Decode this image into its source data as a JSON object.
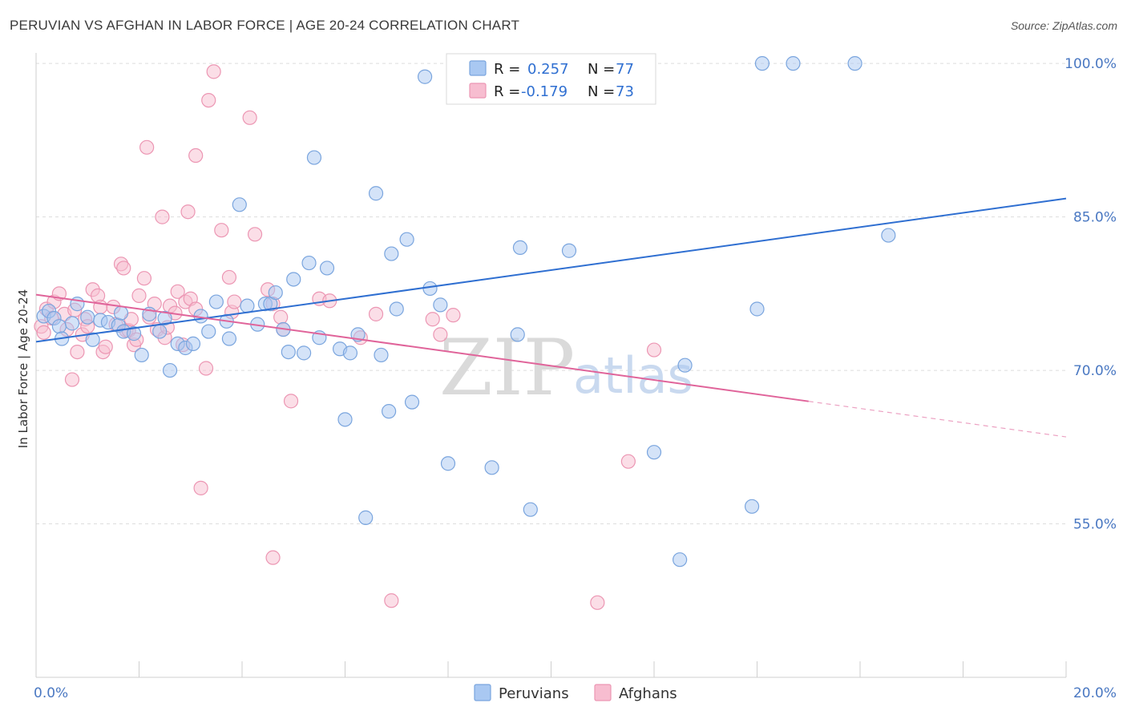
{
  "title": "PERUVIAN VS AFGHAN IN LABOR FORCE | AGE 20-24 CORRELATION CHART",
  "source": "Source: ZipAtlas.com",
  "watermark": {
    "zip": "ZIP",
    "atlas": "atlas"
  },
  "colors": {
    "peruvian_fill": "#a9c8f2",
    "peruvian_stroke": "#7aa5de",
    "peruvian_line": "#2f6fd1",
    "afghan_fill": "#f7bdd0",
    "afghan_stroke": "#ec96b3",
    "afghan_line": "#e0649a",
    "grid": "#dddddd",
    "axis_label": "#4a78c2"
  },
  "legend": {
    "rows": [
      {
        "r_label": "R =",
        "r_value": "0.257",
        "n_label": "N =",
        "n_value": "77"
      },
      {
        "r_label": "R =",
        "r_value": "-0.179",
        "n_label": "N =",
        "n_value": "73"
      }
    ]
  },
  "chart_data": {
    "type": "scatter",
    "title": "PERUVIAN VS AFGHAN IN LABOR FORCE | AGE 20-24 CORRELATION CHART",
    "xlabel": "",
    "ylabel": "In Labor Force | Age 20-24",
    "xlim": [
      0,
      20
    ],
    "ylim": [
      40,
      101.5
    ],
    "x_tick_labels": [
      {
        "value": 0,
        "label": "0.0%"
      },
      {
        "value": 20,
        "label": "20.0%"
      }
    ],
    "y_tick_labels": [
      {
        "value": 100,
        "label": "100.0%"
      },
      {
        "value": 85,
        "label": "85.0%"
      },
      {
        "value": 70,
        "label": "70.0%"
      },
      {
        "value": 55,
        "label": "55.0%"
      }
    ],
    "legend_position": "top-center",
    "series": [
      {
        "name": "Peruvians",
        "trend": {
          "x": [
            0,
            20
          ],
          "y": [
            72.8,
            86.8
          ],
          "dashed_from": null
        },
        "points": [
          [
            0.15,
            75.3
          ],
          [
            0.25,
            75.8
          ],
          [
            0.35,
            75.1
          ],
          [
            0.45,
            74.3
          ],
          [
            0.5,
            73.1
          ],
          [
            0.7,
            74.6
          ],
          [
            0.8,
            76.5
          ],
          [
            1.0,
            75.2
          ],
          [
            1.1,
            73.0
          ],
          [
            1.25,
            74.9
          ],
          [
            1.4,
            74.7
          ],
          [
            1.6,
            74.4
          ],
          [
            1.65,
            75.6
          ],
          [
            1.7,
            73.8
          ],
          [
            1.9,
            73.6
          ],
          [
            2.05,
            71.5
          ],
          [
            2.2,
            75.5
          ],
          [
            2.4,
            73.8
          ],
          [
            2.5,
            75.1
          ],
          [
            2.6,
            70.0
          ],
          [
            2.75,
            72.6
          ],
          [
            2.9,
            72.2
          ],
          [
            3.05,
            72.6
          ],
          [
            3.2,
            75.3
          ],
          [
            3.35,
            73.8
          ],
          [
            3.5,
            76.7
          ],
          [
            3.7,
            74.8
          ],
          [
            3.75,
            73.1
          ],
          [
            3.95,
            86.2
          ],
          [
            4.1,
            76.3
          ],
          [
            4.3,
            74.5
          ],
          [
            4.45,
            76.5
          ],
          [
            4.55,
            76.5
          ],
          [
            4.65,
            77.6
          ],
          [
            4.8,
            74.0
          ],
          [
            4.9,
            71.8
          ],
          [
            5.0,
            78.9
          ],
          [
            5.2,
            71.7
          ],
          [
            5.3,
            80.5
          ],
          [
            5.5,
            73.2
          ],
          [
            5.4,
            90.8
          ],
          [
            5.65,
            80.0
          ],
          [
            5.9,
            72.1
          ],
          [
            6.0,
            65.2
          ],
          [
            6.1,
            71.7
          ],
          [
            6.25,
            73.5
          ],
          [
            6.4,
            55.6
          ],
          [
            6.6,
            87.3
          ],
          [
            6.7,
            71.5
          ],
          [
            6.85,
            66.0
          ],
          [
            6.9,
            81.4
          ],
          [
            7.0,
            76.0
          ],
          [
            7.2,
            82.8
          ],
          [
            7.3,
            66.9
          ],
          [
            7.55,
            98.7
          ],
          [
            7.65,
            78.0
          ],
          [
            7.85,
            76.4
          ],
          [
            8.0,
            60.9
          ],
          [
            8.25,
            100.0
          ],
          [
            8.4,
            100.0
          ],
          [
            8.85,
            60.5
          ],
          [
            9.3,
            100.0
          ],
          [
            9.35,
            73.5
          ],
          [
            9.4,
            82.0
          ],
          [
            9.6,
            56.4
          ],
          [
            10.35,
            81.7
          ],
          [
            10.5,
            100.0
          ],
          [
            11.4,
            100.0
          ],
          [
            12.0,
            62.0
          ],
          [
            12.5,
            51.5
          ],
          [
            12.6,
            70.5
          ],
          [
            13.9,
            56.7
          ],
          [
            14.0,
            76.0
          ],
          [
            14.1,
            100.0
          ],
          [
            14.7,
            100.0
          ],
          [
            15.9,
            100.0
          ],
          [
            16.55,
            83.2
          ]
        ]
      },
      {
        "name": "Afghans",
        "trend": {
          "x": [
            0,
            20
          ],
          "y": [
            77.4,
            63.5
          ],
          "dashed_from": 15.0
        },
        "points": [
          [
            0.1,
            74.3
          ],
          [
            0.15,
            73.7
          ],
          [
            0.2,
            76.0
          ],
          [
            0.3,
            75.1
          ],
          [
            0.35,
            76.7
          ],
          [
            0.45,
            77.5
          ],
          [
            0.55,
            75.5
          ],
          [
            0.6,
            74.0
          ],
          [
            0.7,
            69.1
          ],
          [
            0.75,
            75.9
          ],
          [
            0.8,
            71.8
          ],
          [
            0.9,
            73.5
          ],
          [
            0.95,
            75.0
          ],
          [
            1.0,
            74.3
          ],
          [
            1.1,
            77.9
          ],
          [
            1.2,
            77.3
          ],
          [
            1.25,
            76.2
          ],
          [
            1.3,
            71.8
          ],
          [
            1.35,
            72.3
          ],
          [
            1.5,
            76.2
          ],
          [
            1.55,
            74.5
          ],
          [
            1.65,
            80.4
          ],
          [
            1.7,
            80.0
          ],
          [
            1.75,
            73.9
          ],
          [
            1.8,
            73.9
          ],
          [
            1.85,
            75.0
          ],
          [
            1.9,
            72.5
          ],
          [
            1.95,
            73.0
          ],
          [
            2.0,
            77.3
          ],
          [
            2.1,
            79.0
          ],
          [
            2.15,
            91.8
          ],
          [
            2.2,
            75.2
          ],
          [
            2.3,
            76.5
          ],
          [
            2.35,
            74.0
          ],
          [
            2.45,
            85.0
          ],
          [
            2.5,
            73.2
          ],
          [
            2.55,
            74.2
          ],
          [
            2.6,
            76.3
          ],
          [
            2.7,
            75.6
          ],
          [
            2.75,
            77.7
          ],
          [
            2.85,
            72.5
          ],
          [
            2.9,
            76.7
          ],
          [
            2.95,
            85.5
          ],
          [
            3.0,
            77.0
          ],
          [
            3.1,
            76.0
          ],
          [
            3.1,
            91.0
          ],
          [
            3.2,
            58.5
          ],
          [
            3.3,
            70.2
          ],
          [
            3.35,
            96.4
          ],
          [
            3.45,
            99.2
          ],
          [
            3.6,
            83.7
          ],
          [
            3.75,
            79.1
          ],
          [
            3.8,
            75.7
          ],
          [
            3.85,
            76.7
          ],
          [
            4.15,
            94.7
          ],
          [
            4.25,
            83.3
          ],
          [
            4.5,
            77.9
          ],
          [
            4.6,
            76.5
          ],
          [
            4.6,
            51.7
          ],
          [
            4.75,
            75.2
          ],
          [
            4.8,
            74.0
          ],
          [
            4.95,
            67.0
          ],
          [
            5.5,
            77.0
          ],
          [
            5.7,
            76.8
          ],
          [
            6.3,
            73.2
          ],
          [
            6.6,
            75.5
          ],
          [
            6.9,
            47.5
          ],
          [
            7.7,
            75.0
          ],
          [
            7.85,
            73.5
          ],
          [
            8.1,
            75.4
          ],
          [
            10.9,
            47.3
          ],
          [
            11.5,
            61.1
          ],
          [
            12.0,
            72.0
          ]
        ]
      }
    ]
  },
  "bottom_legend": [
    {
      "label": "Peruvians"
    },
    {
      "label": "Afghans"
    }
  ]
}
